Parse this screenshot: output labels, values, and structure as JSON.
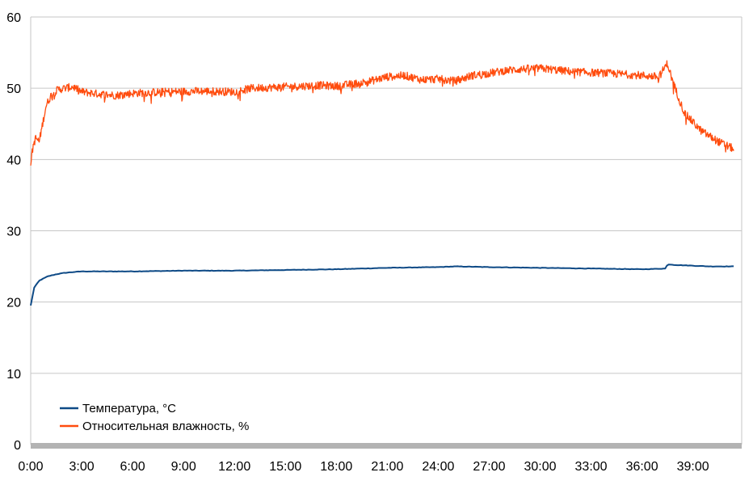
{
  "chart_data": {
    "type": "line",
    "title": "",
    "xlabel": "",
    "ylabel": "",
    "ylim": [
      0,
      60
    ],
    "y_ticks": [
      "0",
      "10",
      "20",
      "30",
      "40",
      "50",
      "60"
    ],
    "x_ticks": [
      "0:00",
      "3:00",
      "6:00",
      "9:00",
      "12:00",
      "15:00",
      "18:00",
      "21:00",
      "24:00",
      "27:00",
      "30:00",
      "33:00",
      "36:00",
      "39:00"
    ],
    "x_unit": "minutes",
    "xlim": [
      0,
      42
    ],
    "grid": true,
    "legend_position": "bottom-left",
    "series": [
      {
        "name": "Температура, °C",
        "color": "#0e4a86",
        "x": [
          0.0,
          0.2,
          0.5,
          1.0,
          1.5,
          2.0,
          3.0,
          6.0,
          9.0,
          12.0,
          15.0,
          18.0,
          21.0,
          24.0,
          25.0,
          27.0,
          30.0,
          33.0,
          36.0,
          37.4,
          37.5,
          38.0,
          40.0,
          41.4
        ],
        "y": [
          19.5,
          22.0,
          23.0,
          23.6,
          23.9,
          24.1,
          24.3,
          24.3,
          24.4,
          24.4,
          24.5,
          24.6,
          24.8,
          24.9,
          25.0,
          24.9,
          24.8,
          24.7,
          24.6,
          24.7,
          25.3,
          25.2,
          25.0,
          25.0
        ]
      },
      {
        "name": "Относительная влажность, %",
        "color": "#ff4c0e",
        "noise": 0.7,
        "x": [
          0.0,
          0.15,
          0.3,
          0.5,
          0.7,
          0.9,
          1.2,
          1.6,
          2.0,
          2.5,
          3.0,
          4.0,
          5.0,
          6.0,
          8.0,
          10.0,
          12.0,
          13.0,
          15.0,
          17.0,
          18.0,
          19.0,
          20.0,
          21.0,
          22.0,
          23.0,
          24.0,
          25.0,
          26.0,
          27.0,
          28.0,
          29.0,
          30.0,
          32.0,
          34.0,
          36.0,
          37.0,
          37.5,
          37.8,
          38.5,
          39.5,
          40.5,
          41.4
        ],
        "y": [
          39.5,
          42.0,
          43.0,
          42.5,
          45.0,
          47.5,
          49.0,
          49.8,
          50.0,
          50.2,
          49.5,
          49.2,
          49.0,
          49.3,
          49.5,
          49.6,
          49.5,
          50.0,
          50.2,
          50.4,
          50.3,
          50.6,
          51.0,
          51.6,
          51.8,
          51.2,
          51.3,
          51.0,
          51.8,
          52.1,
          52.5,
          52.7,
          52.8,
          52.3,
          52.1,
          51.8,
          51.6,
          53.5,
          51.0,
          46.5,
          44.0,
          42.5,
          41.5
        ]
      }
    ]
  }
}
